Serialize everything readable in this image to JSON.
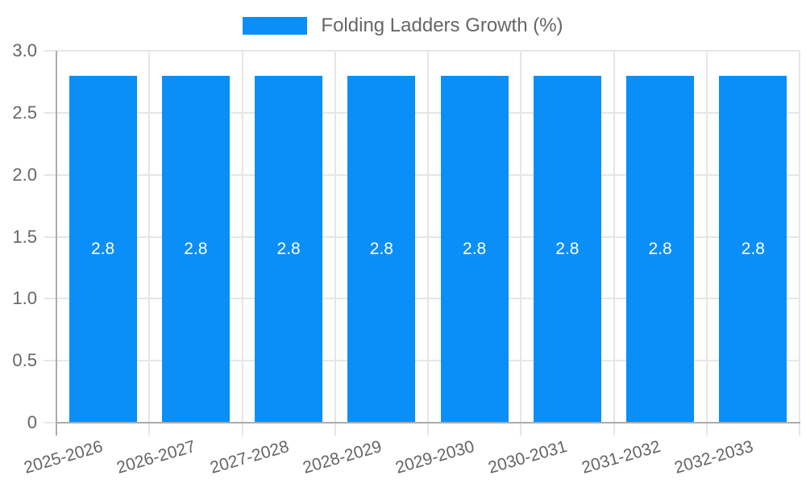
{
  "chart_data": {
    "type": "bar",
    "title": "Folding Ladders Growth (%)",
    "legend": {
      "position": "top",
      "label": "Folding Ladders Growth (%)"
    },
    "categories": [
      "2025-2026",
      "2026-2027",
      "2027-2028",
      "2028-2029",
      "2029-2030",
      "2030-2031",
      "2031-2032",
      "2032-2033"
    ],
    "values": [
      2.8,
      2.8,
      2.8,
      2.8,
      2.8,
      2.8,
      2.8,
      2.8
    ],
    "bar_labels": [
      "2.8",
      "2.8",
      "2.8",
      "2.8",
      "2.8",
      "2.8",
      "2.8",
      "2.8"
    ],
    "ylim": [
      0,
      3
    ],
    "yticks": [
      {
        "value": 3,
        "label": "3.0"
      },
      {
        "value": 2.5,
        "label": "2.5"
      },
      {
        "value": 2,
        "label": "2.0"
      },
      {
        "value": 1.5,
        "label": "1.5"
      },
      {
        "value": 1,
        "label": "1.0"
      },
      {
        "value": 0.5,
        "label": "0.5"
      },
      {
        "value": 0,
        "label": "0"
      }
    ],
    "grid": true,
    "x_label_rotation_deg": -16,
    "colors": {
      "bar": "#0A8FF8",
      "grid": "#E6E6E6",
      "axis_border": "#ABABAB",
      "tick_text": "#666666",
      "legend_text": "#666666",
      "bar_label": "#FFFFFF",
      "background": "#FFFFFF"
    }
  }
}
